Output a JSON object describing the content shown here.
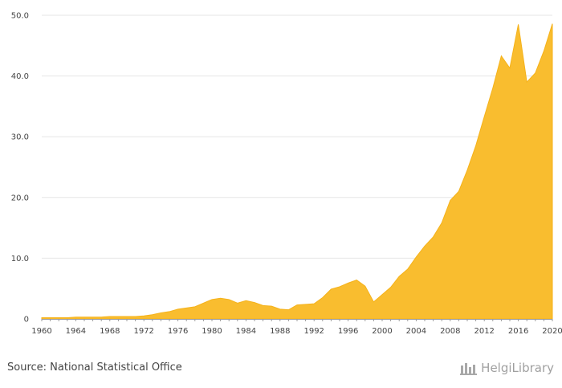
{
  "chart_data": {
    "type": "area",
    "title": "",
    "xlabel": "",
    "ylabel": "",
    "xlim": [
      1960,
      2020
    ],
    "ylim": [
      0,
      50
    ],
    "grid": true,
    "legend": "none",
    "color": "#f9bd2f",
    "x_tick_labels": [
      "1960",
      "1964",
      "1968",
      "1972",
      "1976",
      "1980",
      "1984",
      "1988",
      "1992",
      "1996",
      "2000",
      "2004",
      "2008",
      "2012",
      "2016",
      "2020"
    ],
    "y_tick_labels": [
      "0",
      "10.0",
      "20.0",
      "30.0",
      "40.0",
      "50.0"
    ],
    "series": [
      {
        "x": [
          1960,
          1961,
          1962,
          1963,
          1964,
          1965,
          1966,
          1967,
          1968,
          1969,
          1970,
          1971,
          1972,
          1973,
          1974,
          1975,
          1976,
          1977,
          1978,
          1979,
          1980,
          1981,
          1982,
          1983,
          1984,
          1985,
          1986,
          1987,
          1988,
          1989,
          1990,
          1991,
          1992,
          1993,
          1994,
          1995,
          1996,
          1997,
          1998,
          1999,
          2000,
          2001,
          2002,
          2003,
          2004,
          2005,
          2006,
          2007,
          2008,
          2009,
          2010,
          2011,
          2012,
          2013,
          2014,
          2015,
          2016,
          2017,
          2018,
          2019,
          2020
        ],
        "values": [
          0.2,
          0.2,
          0.2,
          0.2,
          0.3,
          0.3,
          0.3,
          0.3,
          0.4,
          0.4,
          0.4,
          0.4,
          0.5,
          0.7,
          1.0,
          1.2,
          1.6,
          1.8,
          2.0,
          2.6,
          3.2,
          3.4,
          3.2,
          2.6,
          3.0,
          2.7,
          2.2,
          2.1,
          1.6,
          1.5,
          2.3,
          2.4,
          2.5,
          3.5,
          4.9,
          5.3,
          5.9,
          6.4,
          5.4,
          2.8,
          4.0,
          5.2,
          7.0,
          8.2,
          10.2,
          12.0,
          13.5,
          15.8,
          19.5,
          21.0,
          24.5,
          28.5,
          33.3,
          38.0,
          43.3,
          41.3,
          48.5,
          39.0,
          40.5,
          44.1,
          48.6
        ]
      }
    ]
  },
  "footer": {
    "source": "Source: National Statistical Office",
    "logo_name_a": "Helgi",
    "logo_name_b": "Library"
  }
}
